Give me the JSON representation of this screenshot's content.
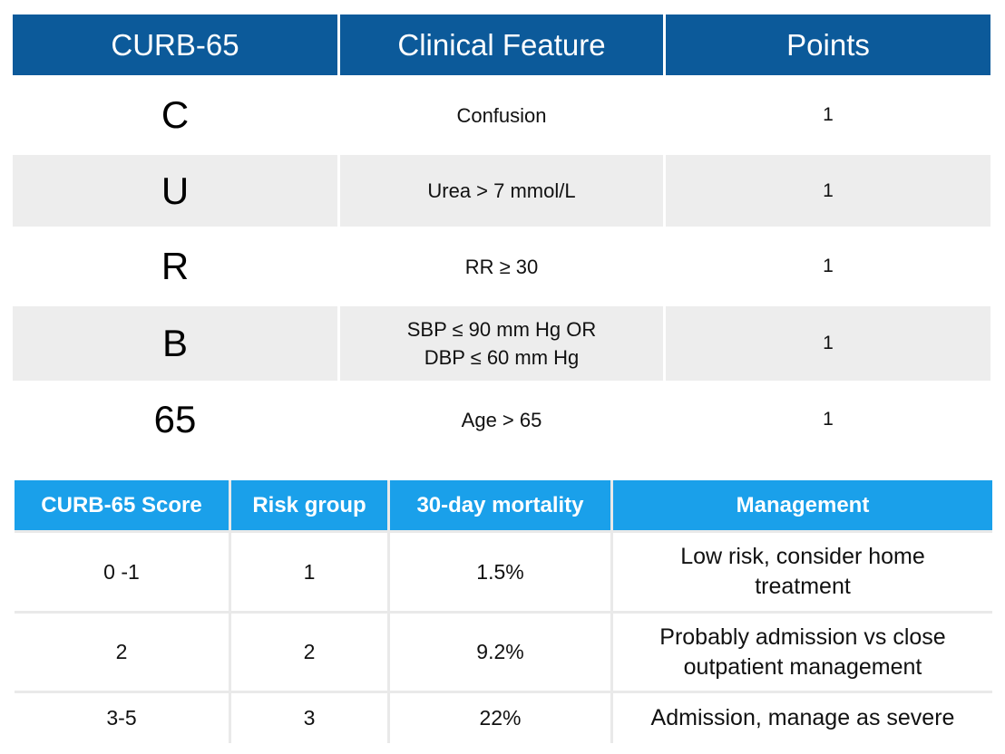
{
  "curb65_table": {
    "headers": [
      "CURB-65",
      "Clinical Feature",
      "Points"
    ],
    "rows": [
      {
        "letter": "C",
        "feature_line1": "Confusion",
        "feature_line2": "",
        "points": "1"
      },
      {
        "letter": "U",
        "feature_line1": "Urea > 7 mmol/L",
        "feature_line2": "",
        "points": "1"
      },
      {
        "letter": "R",
        "feature_line1": "RR ≥ 30",
        "feature_line2": "",
        "points": "1"
      },
      {
        "letter": "B",
        "feature_line1": "SBP ≤ 90 mm Hg OR",
        "feature_line2": "DBP ≤ 60 mm Hg",
        "points": "1"
      },
      {
        "letter": "65",
        "feature_line1": "Age > 65",
        "feature_line2": "",
        "points": "1"
      }
    ]
  },
  "score_table": {
    "headers": [
      "CURB-65 Score",
      "Risk group",
      "30-day mortality",
      "Management"
    ],
    "rows": [
      {
        "score": "0 -1",
        "risk_group": "1",
        "mortality": "1.5%",
        "management_line1": "Low risk, consider home",
        "management_line2": "treatment"
      },
      {
        "score": "2",
        "risk_group": "2",
        "mortality": "9.2%",
        "management_line1": "Probably admission vs close",
        "management_line2": "outpatient management"
      },
      {
        "score": "3-5",
        "risk_group": "3",
        "mortality": "22%",
        "management_line1": "Admission, manage as severe",
        "management_line2": ""
      }
    ]
  },
  "colors": {
    "table1_header": "#0c5a9a",
    "table2_header": "#1aa0ea",
    "stripe": "#ededed"
  }
}
